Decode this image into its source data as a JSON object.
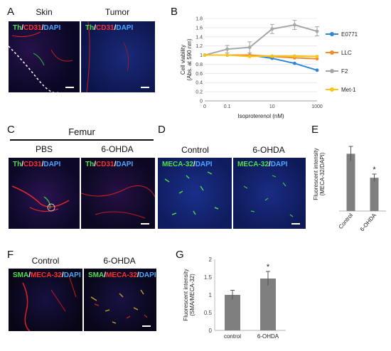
{
  "panels": {
    "A": {
      "letter": "A",
      "titles": [
        "Skin",
        "Tumor"
      ],
      "stain": {
        "p1": "Th",
        "sep1": "/",
        "p2": "CD31",
        "sep2": "/",
        "p3": "DAPI"
      }
    },
    "B": {
      "letter": "B"
    },
    "C": {
      "letter": "C",
      "group": "Femur",
      "titles": [
        "PBS",
        "6-OHDA"
      ],
      "stain": {
        "p1": "Th",
        "sep1": "/",
        "p2": "CD31",
        "sep2": "/",
        "p3": "DAPI"
      }
    },
    "D": {
      "letter": "D",
      "titles": [
        "Control",
        "6-OHDA"
      ],
      "stain": {
        "p1": "MECA-32",
        "sep1": "/",
        "p2": "DAPI"
      }
    },
    "E": {
      "letter": "E"
    },
    "F": {
      "letter": "F",
      "titles": [
        "Control",
        "6-OHDA"
      ],
      "stain": {
        "p1": "SMA",
        "sep1": "/",
        "p2": "MECA-32",
        "sep2": "/",
        "p3": "DAPI"
      }
    },
    "G": {
      "letter": "G"
    }
  },
  "chart_data": [
    {
      "id": "B",
      "type": "line",
      "xlabel": "Isoproterenol (nM)",
      "ylabel": "Cell viability (Abs. at 590 nm)",
      "x_ticks": [
        "0",
        "0.1",
        "10",
        "1000"
      ],
      "x": [
        0,
        0.1,
        1,
        10,
        100,
        1000
      ],
      "ylim": [
        0,
        1.8
      ],
      "y_ticks": [
        0,
        0.2,
        0.4,
        0.6,
        0.8,
        1,
        1.2,
        1.4,
        1.6,
        1.8
      ],
      "grid": true,
      "legend": "right",
      "series": [
        {
          "name": "E0771",
          "color": "#2e86d6",
          "values": [
            1.0,
            1.0,
            1.0,
            0.93,
            0.82,
            0.67
          ]
        },
        {
          "name": "LLC",
          "color": "#f28c28",
          "values": [
            1.0,
            1.0,
            1.0,
            0.97,
            0.94,
            0.92
          ]
        },
        {
          "name": "F2",
          "color": "#a6a6a6",
          "values": [
            1.0,
            1.13,
            1.17,
            1.57,
            1.66,
            1.52
          ],
          "errors": [
            0,
            0.08,
            0.12,
            0.1,
            0.1,
            0.1
          ]
        },
        {
          "name": "Met-1",
          "color": "#f5c518",
          "values": [
            1.0,
            1.0,
            0.97,
            0.98,
            0.98,
            0.97
          ]
        }
      ]
    },
    {
      "id": "E",
      "type": "bar",
      "categories": [
        "Control",
        "6-OHDA"
      ],
      "values": [
        0.31,
        0.18
      ],
      "errors": [
        0.04,
        0.02
      ],
      "ylabel": "Fluorescent intensity (MECA-32/DAPI)",
      "ylim": [
        0,
        0.4
      ],
      "significance": [
        "",
        "*"
      ]
    },
    {
      "id": "G",
      "type": "bar",
      "categories": [
        "control",
        "6-OHDA"
      ],
      "values": [
        1.0,
        1.46
      ],
      "errors": [
        0.13,
        0.2
      ],
      "ylabel": "Fluorescent intensity (SMA/MECA-32)",
      "ylim": [
        0,
        2
      ],
      "y_ticks": [
        "0",
        "0.5",
        "1",
        "1.5",
        "2"
      ],
      "significance": [
        "",
        "*"
      ]
    }
  ]
}
